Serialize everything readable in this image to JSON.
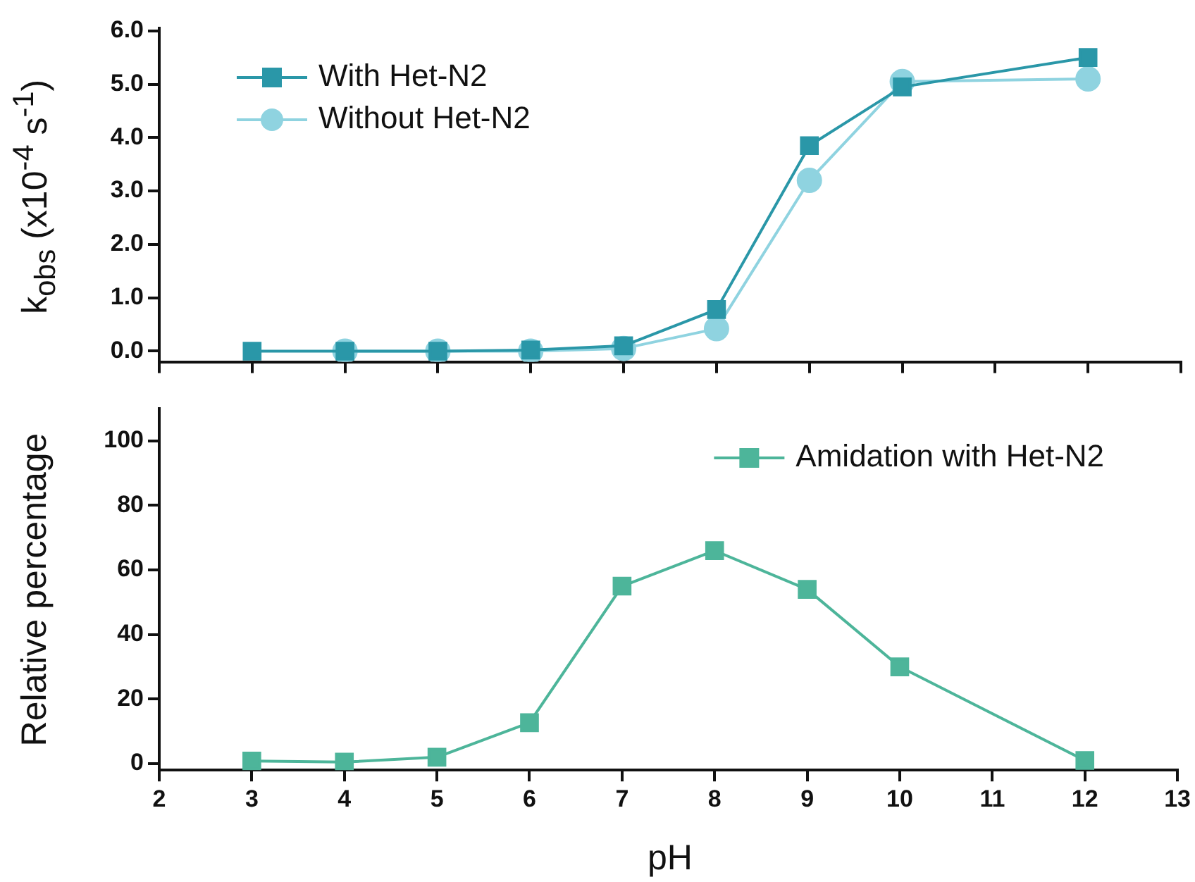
{
  "chart_data": [
    {
      "type": "line",
      "ylabel": "k$_{obs}$ (x10$^{-4}$ s$^{-1}$)",
      "x": [
        3,
        4,
        5,
        6,
        7,
        8,
        9,
        10,
        12
      ],
      "xlim": [
        2,
        13
      ],
      "xticks": [
        2,
        3,
        4,
        5,
        6,
        7,
        8,
        9,
        10,
        11,
        12,
        13
      ],
      "ylim": [
        -0.2,
        6.05
      ],
      "yticks": [
        {
          "value": 0,
          "label": "0.0"
        },
        {
          "value": 1,
          "label": "1.0"
        },
        {
          "value": 2,
          "label": "2.0"
        },
        {
          "value": 3,
          "label": "3.0"
        },
        {
          "value": 4,
          "label": "4.0"
        },
        {
          "value": 5,
          "label": "5.0"
        },
        {
          "value": 6,
          "label": "6.0"
        }
      ],
      "tick_labels": "y",
      "legend": "top left",
      "grid": false,
      "line_style": "solid",
      "series": [
        {
          "name": "With Het-N2",
          "color": "#2a97a8",
          "marker": "square",
          "values": [
            0,
            0,
            0,
            0.02,
            0.1,
            0.78,
            3.85,
            4.95,
            5.5
          ]
        },
        {
          "name": "Without Het-N2",
          "color": "#8fd3e0",
          "marker": "circle",
          "values": [
            null,
            0,
            0,
            0,
            0.05,
            0.42,
            3.2,
            5.05,
            5.1
          ]
        }
      ]
    },
    {
      "type": "line",
      "xlabel": "pH",
      "ylabel": "Relative percentage",
      "x": [
        3,
        4,
        5,
        6,
        7,
        8,
        9,
        10,
        12
      ],
      "xlim": [
        2,
        13
      ],
      "xticks": [
        2,
        3,
        4,
        5,
        6,
        7,
        8,
        9,
        10,
        11,
        12,
        13
      ],
      "ylim": [
        -2,
        110
      ],
      "yticks": [
        0,
        20,
        40,
        60,
        80,
        100
      ],
      "legend": "top right",
      "grid": false,
      "line_style": "solid",
      "series": [
        {
          "name": "Amidation with Het-N2",
          "color": "#4db59a",
          "marker": "square",
          "values": [
            0.8,
            0.5,
            2,
            12.7,
            55,
            66,
            54,
            30,
            1
          ]
        }
      ]
    }
  ]
}
